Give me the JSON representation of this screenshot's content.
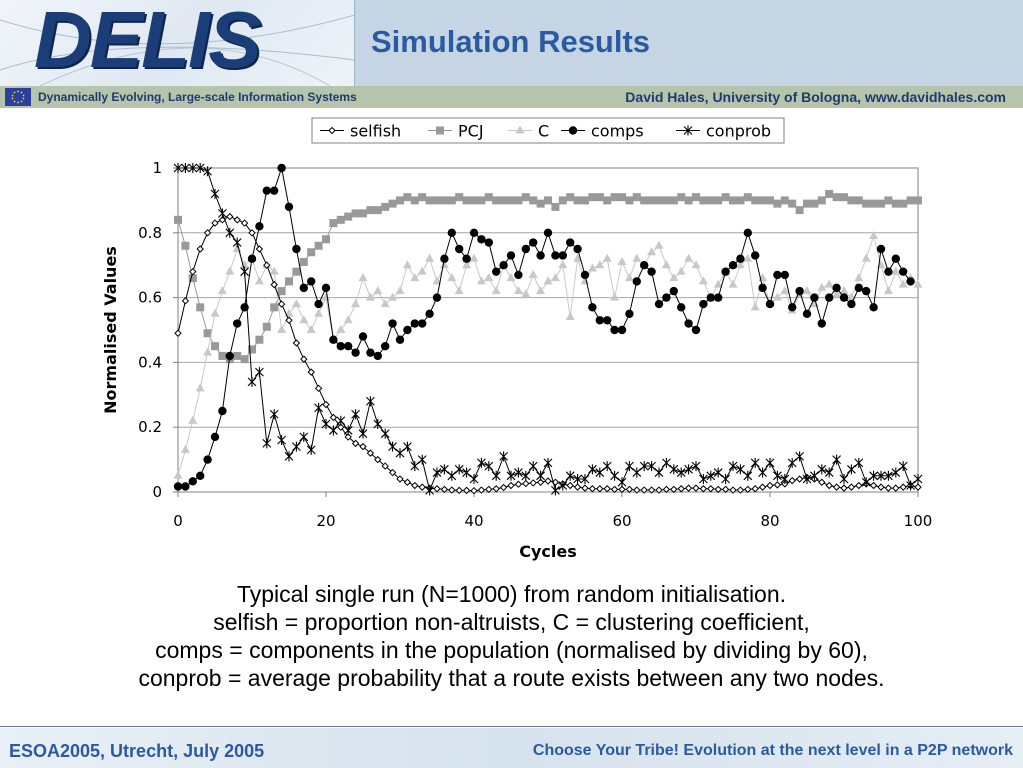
{
  "header": {
    "logo": "DELIS",
    "title": "Simulation Results",
    "subtitle_left": "Dynamically Evolving, Large-scale Information Systems",
    "subtitle_right": "David Hales, University of Bologna, www.davidhales.com"
  },
  "colors": {
    "header_bg": "#c5d5e4",
    "title": "#2b5aa2",
    "subbar_bg": "#b6c4ab",
    "subbar_text": "#1c3b73",
    "logo": "#1c3e78"
  },
  "chart_data": {
    "type": "line",
    "title": "",
    "xlabel": "Cycles",
    "ylabel": "Normalised Values",
    "xlim": [
      0,
      100
    ],
    "ylim": [
      0,
      1
    ],
    "xticks": [
      "0",
      "20",
      "40",
      "60",
      "80",
      "100"
    ],
    "yticks": [
      "0",
      "0.2",
      "0.4",
      "0.6",
      "0.8",
      "1"
    ],
    "grid": true,
    "legend_position": "top",
    "series": [
      {
        "name": "selfish",
        "marker": "diamond-open",
        "color": "#000000",
        "values": [
          0.49,
          0.59,
          0.68,
          0.75,
          0.8,
          0.83,
          0.84,
          0.85,
          0.84,
          0.83,
          0.8,
          0.75,
          0.7,
          0.64,
          0.58,
          0.53,
          0.46,
          0.41,
          0.37,
          0.32,
          0.27,
          0.23,
          0.2,
          0.17,
          0.15,
          0.14,
          0.12,
          0.1,
          0.08,
          0.06,
          0.04,
          0.03,
          0.02,
          0.015,
          0.012,
          0.01,
          0.008,
          0.006,
          0.005,
          0.005,
          0.004,
          0.006,
          0.008,
          0.01,
          0.014,
          0.02,
          0.024,
          0.026,
          0.028,
          0.03,
          0.034,
          0.03,
          0.025,
          0.02,
          0.015,
          0.012,
          0.01,
          0.01,
          0.01,
          0.008,
          0.008,
          0.008,
          0.006,
          0.006,
          0.006,
          0.006,
          0.008,
          0.008,
          0.01,
          0.012,
          0.012,
          0.01,
          0.01,
          0.008,
          0.008,
          0.006,
          0.006,
          0.008,
          0.01,
          0.015,
          0.02,
          0.022,
          0.025,
          0.035,
          0.04,
          0.045,
          0.04,
          0.03,
          0.02,
          0.015,
          0.012,
          0.015,
          0.02,
          0.025,
          0.02,
          0.015,
          0.012,
          0.012,
          0.015,
          0.02,
          0.015
        ]
      },
      {
        "name": "PCJ",
        "marker": "square",
        "color": "#999999",
        "values": [
          0.84,
          0.76,
          0.66,
          0.57,
          0.49,
          0.45,
          0.42,
          0.41,
          0.42,
          0.41,
          0.44,
          0.47,
          0.51,
          0.57,
          0.62,
          0.65,
          0.68,
          0.71,
          0.74,
          0.76,
          0.78,
          0.83,
          0.84,
          0.85,
          0.86,
          0.86,
          0.87,
          0.87,
          0.88,
          0.89,
          0.9,
          0.91,
          0.9,
          0.91,
          0.9,
          0.9,
          0.9,
          0.9,
          0.91,
          0.9,
          0.9,
          0.9,
          0.91,
          0.9,
          0.9,
          0.9,
          0.9,
          0.91,
          0.9,
          0.89,
          0.9,
          0.88,
          0.9,
          0.91,
          0.9,
          0.9,
          0.91,
          0.91,
          0.9,
          0.91,
          0.91,
          0.9,
          0.91,
          0.9,
          0.9,
          0.9,
          0.9,
          0.9,
          0.91,
          0.9,
          0.91,
          0.9,
          0.9,
          0.9,
          0.91,
          0.9,
          0.9,
          0.91,
          0.9,
          0.9,
          0.9,
          0.89,
          0.9,
          0.89,
          0.87,
          0.89,
          0.89,
          0.9,
          0.92,
          0.91,
          0.91,
          0.9,
          0.9,
          0.89,
          0.89,
          0.89,
          0.9,
          0.89,
          0.89,
          0.9,
          0.9
        ]
      },
      {
        "name": "C",
        "marker": "triangle",
        "color": "#c8c8c8",
        "values": [
          0.05,
          0.13,
          0.22,
          0.32,
          0.43,
          0.55,
          0.62,
          0.68,
          0.75,
          0.7,
          0.72,
          0.65,
          0.7,
          0.68,
          0.5,
          0.55,
          0.58,
          0.53,
          0.5,
          0.55,
          0.6,
          0.47,
          0.5,
          0.53,
          0.58,
          0.66,
          0.6,
          0.62,
          0.58,
          0.6,
          0.62,
          0.7,
          0.66,
          0.68,
          0.72,
          0.65,
          0.7,
          0.66,
          0.62,
          0.7,
          0.72,
          0.65,
          0.66,
          0.62,
          0.7,
          0.66,
          0.62,
          0.61,
          0.67,
          0.62,
          0.65,
          0.66,
          0.7,
          0.54,
          0.72,
          0.65,
          0.69,
          0.7,
          0.72,
          0.6,
          0.71,
          0.66,
          0.72,
          0.7,
          0.74,
          0.76,
          0.7,
          0.66,
          0.68,
          0.72,
          0.7,
          0.65,
          0.6,
          0.64,
          0.68,
          0.64,
          0.7,
          0.72,
          0.57,
          0.66,
          0.58,
          0.6,
          0.62,
          0.56,
          0.61,
          0.62,
          0.58,
          0.63,
          0.64,
          0.61,
          0.62,
          0.6,
          0.66,
          0.72,
          0.79,
          0.7,
          0.62,
          0.68,
          0.64,
          0.66,
          0.64
        ]
      },
      {
        "name": "comps",
        "marker": "circle",
        "color": "#000000",
        "values": [
          0.017,
          0.017,
          0.033,
          0.05,
          0.1,
          0.17,
          0.25,
          0.42,
          0.52,
          0.57,
          0.72,
          0.82,
          0.93,
          0.93,
          1.0,
          0.88,
          0.75,
          0.63,
          0.65,
          0.58,
          0.63,
          0.47,
          0.45,
          0.45,
          0.43,
          0.48,
          0.43,
          0.42,
          0.45,
          0.52,
          0.47,
          0.5,
          0.52,
          0.52,
          0.55,
          0.6,
          0.72,
          0.8,
          0.75,
          0.72,
          0.8,
          0.78,
          0.77,
          0.68,
          0.7,
          0.73,
          0.67,
          0.75,
          0.77,
          0.73,
          0.8,
          0.73,
          0.73,
          0.77,
          0.75,
          0.67,
          0.57,
          0.53,
          0.53,
          0.5,
          0.5,
          0.55,
          0.65,
          0.7,
          0.68,
          0.58,
          0.6,
          0.62,
          0.57,
          0.52,
          0.5,
          0.58,
          0.6,
          0.6,
          0.68,
          0.7,
          0.72,
          0.8,
          0.73,
          0.63,
          0.58,
          0.67,
          0.67,
          0.57,
          0.62,
          0.55,
          0.6,
          0.52,
          0.6,
          0.63,
          0.6,
          0.58,
          0.63,
          0.62,
          0.57,
          0.75,
          0.68,
          0.72,
          0.68,
          0.65
        ]
      },
      {
        "name": "conprob",
        "marker": "star",
        "color": "#000000",
        "values": [
          1.0,
          1.0,
          1.0,
          1.0,
          0.99,
          0.92,
          0.86,
          0.8,
          0.77,
          0.68,
          0.34,
          0.37,
          0.15,
          0.24,
          0.16,
          0.11,
          0.14,
          0.17,
          0.13,
          0.26,
          0.21,
          0.19,
          0.22,
          0.19,
          0.24,
          0.18,
          0.28,
          0.21,
          0.18,
          0.14,
          0.12,
          0.14,
          0.08,
          0.1,
          0.005,
          0.06,
          0.07,
          0.05,
          0.07,
          0.06,
          0.04,
          0.09,
          0.08,
          0.05,
          0.11,
          0.05,
          0.06,
          0.05,
          0.08,
          0.05,
          0.09,
          0.005,
          0.02,
          0.05,
          0.04,
          0.04,
          0.07,
          0.06,
          0.08,
          0.05,
          0.03,
          0.08,
          0.06,
          0.08,
          0.08,
          0.06,
          0.09,
          0.07,
          0.06,
          0.07,
          0.08,
          0.04,
          0.05,
          0.06,
          0.04,
          0.08,
          0.07,
          0.05,
          0.09,
          0.06,
          0.09,
          0.05,
          0.04,
          0.09,
          0.11,
          0.04,
          0.05,
          0.07,
          0.06,
          0.1,
          0.04,
          0.07,
          0.09,
          0.03,
          0.05,
          0.05,
          0.05,
          0.06,
          0.08,
          0.02,
          0.04
        ]
      }
    ]
  },
  "caption": {
    "lines": [
      "Typical single run (N=1000) from random initialisation.",
      "selfish = proportion non-altruists, C = clustering coefficient,",
      "comps = components in the population (normalised by dividing by 60),",
      "conprob = average probability that a route exists between any two nodes."
    ]
  },
  "footer": {
    "left": "ESOA2005, Utrecht, July 2005",
    "right": "Choose Your Tribe! Evolution at the next level in a P2P network"
  }
}
